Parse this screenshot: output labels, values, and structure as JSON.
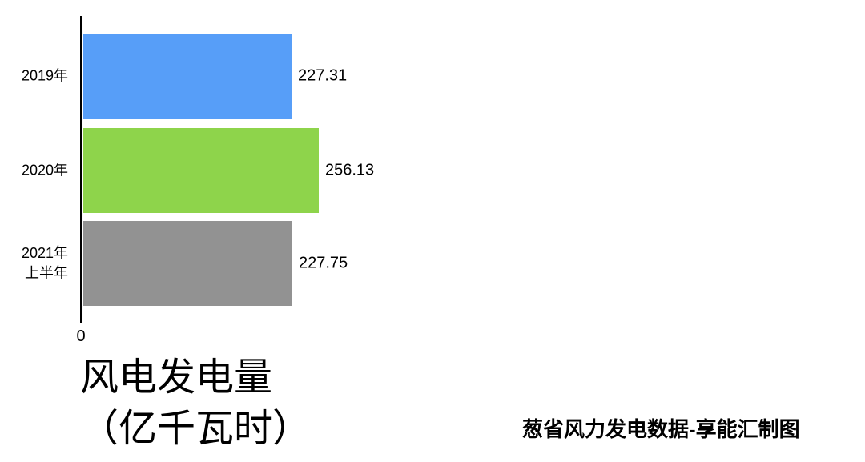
{
  "chart_data": {
    "type": "bar",
    "orientation": "horizontal",
    "title": "风电发电量（亿千瓦时）",
    "title_lines": [
      "风电发电量",
      "（亿千瓦时）"
    ],
    "categories": [
      "2019年",
      "2020年",
      "2021年\n上半年"
    ],
    "values": [
      227.31,
      256.13,
      227.75
    ],
    "value_labels": [
      "227.31",
      "256.13",
      "227.75"
    ],
    "bar_colors": [
      "#579EF8",
      "#8ED44B",
      "#929292"
    ],
    "x_axis": {
      "origin_label": "0",
      "ticks": [
        "0"
      ]
    },
    "grid": false,
    "legend": false,
    "background_color": "#ffffff",
    "axis_color": "#000000",
    "text_color": "#000000",
    "source_note": "葱省风力发电数据-享能汇制图"
  }
}
